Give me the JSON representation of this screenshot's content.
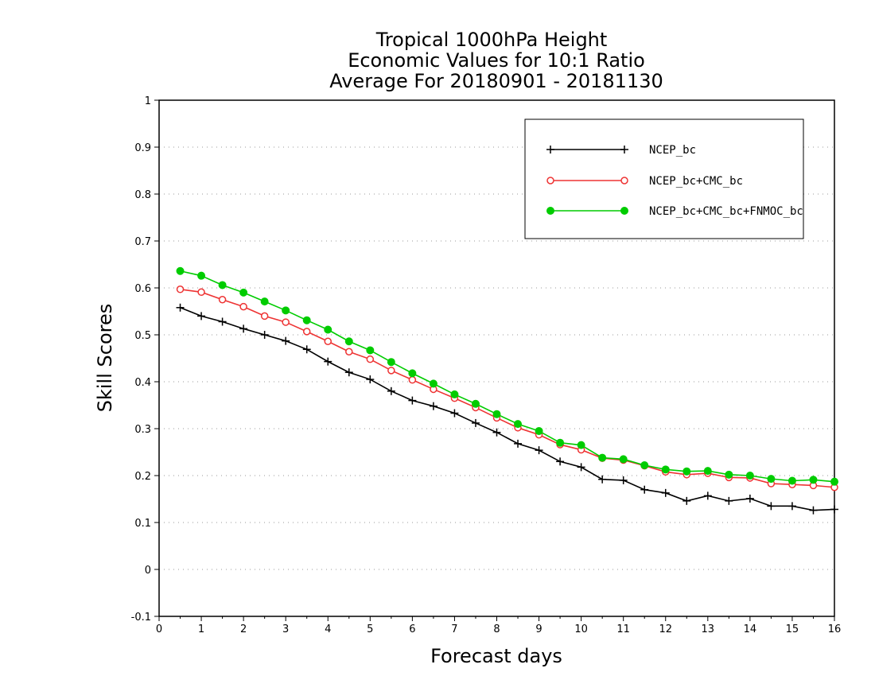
{
  "chart_data": {
    "type": "line",
    "title": [
      "Tropical 1000hPa Height",
      "Economic Values for 10:1 Ratio",
      "Average For 20180901 - 20181130"
    ],
    "xlabel": "Forecast days",
    "ylabel": "Skill Scores",
    "xlim": [
      0,
      16
    ],
    "ylim": [
      -0.1,
      1
    ],
    "xticks": [
      0,
      1,
      2,
      3,
      4,
      5,
      6,
      7,
      8,
      9,
      10,
      11,
      12,
      13,
      14,
      15,
      16
    ],
    "yticks": [
      -0.1,
      0,
      0.1,
      0.2,
      0.3,
      0.4,
      0.5,
      0.6,
      0.7,
      0.8,
      0.9,
      1
    ],
    "grid": "horizontal dotted",
    "legend_position": "top-right",
    "x": [
      0.5,
      1,
      1.5,
      2,
      2.5,
      3,
      3.5,
      4,
      4.5,
      5,
      5.5,
      6,
      6.5,
      7,
      7.5,
      8,
      8.5,
      9,
      9.5,
      10,
      10.5,
      11,
      11.5,
      12,
      12.5,
      13,
      13.5,
      14,
      14.5,
      15,
      15.5,
      16
    ],
    "series": [
      {
        "name": "NCEP_bc",
        "color": "#000000",
        "marker": "plus",
        "values": [
          0.558,
          0.54,
          0.528,
          0.513,
          0.5,
          0.487,
          0.469,
          0.443,
          0.42,
          0.405,
          0.38,
          0.36,
          0.348,
          0.333,
          0.312,
          0.292,
          0.268,
          0.254,
          0.23,
          0.218,
          0.192,
          0.19,
          0.17,
          0.163,
          0.146,
          0.157,
          0.146,
          0.151,
          0.135,
          0.135,
          0.126,
          0.128
        ]
      },
      {
        "name": "NCEP_bc+CMC_bc",
        "color": "#ee3333",
        "marker": "open-circle",
        "values": [
          0.597,
          0.591,
          0.575,
          0.56,
          0.54,
          0.527,
          0.507,
          0.486,
          0.464,
          0.448,
          0.424,
          0.404,
          0.384,
          0.365,
          0.345,
          0.323,
          0.302,
          0.287,
          0.266,
          0.255,
          0.237,
          0.233,
          0.221,
          0.208,
          0.202,
          0.205,
          0.196,
          0.195,
          0.183,
          0.181,
          0.179,
          0.175
        ]
      },
      {
        "name": "NCEP_bc+CMC_bc+FNMOC_bc",
        "color": "#00cc00",
        "marker": "filled-circle",
        "values": [
          0.636,
          0.626,
          0.606,
          0.59,
          0.571,
          0.552,
          0.531,
          0.511,
          0.486,
          0.467,
          0.442,
          0.418,
          0.396,
          0.373,
          0.353,
          0.331,
          0.31,
          0.295,
          0.27,
          0.265,
          0.238,
          0.235,
          0.222,
          0.213,
          0.209,
          0.21,
          0.202,
          0.2,
          0.193,
          0.189,
          0.191,
          0.187
        ]
      }
    ]
  }
}
